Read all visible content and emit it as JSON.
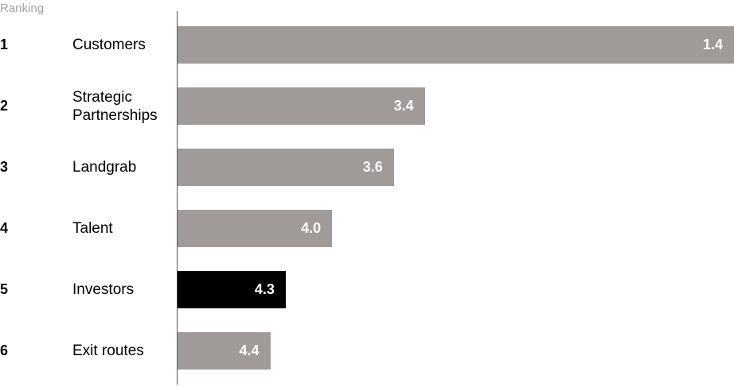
{
  "chart_data": {
    "type": "bar",
    "orientation": "horizontal",
    "header": "Ranking",
    "ranks": [
      "1",
      "2",
      "3",
      "4",
      "5",
      "6"
    ],
    "categories": [
      "Customers",
      "Strategic Partnerships",
      "Landgrab",
      "Talent",
      "Investors",
      "Exit routes"
    ],
    "values": [
      1.4,
      3.4,
      3.6,
      4.0,
      4.3,
      4.4
    ],
    "value_labels": [
      "1.4",
      "3.4",
      "3.6",
      "4.0",
      "4.3",
      "4.4"
    ],
    "highlight_index": 4,
    "colors": {
      "bar": "#a09b98",
      "highlight": "#000000",
      "label": "#ffffff"
    },
    "legend": "none",
    "grid": false
  }
}
